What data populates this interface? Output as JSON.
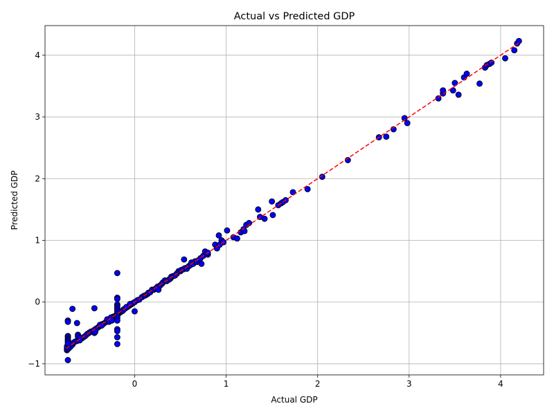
{
  "chart_data": {
    "type": "scatter",
    "title": "Actual vs Predicted GDP",
    "xlabel": "Actual GDP",
    "ylabel": "Predicted GDP",
    "xlim": [
      -0.98,
      4.47
    ],
    "ylim": [
      -1.18,
      4.48
    ],
    "xticks": [
      0,
      1,
      2,
      3,
      4
    ],
    "yticks": [
      -1,
      0,
      1,
      2,
      3,
      4
    ],
    "grid": true,
    "point_color": "#0000ff",
    "point_edge_color": "#000000",
    "line_color": "#ff0000",
    "reference_line": {
      "style": "dashed",
      "x": [
        -0.75,
        4.2
      ],
      "y": [
        -0.75,
        4.2
      ]
    },
    "points": [
      [
        -0.74,
        -0.78
      ],
      [
        -0.74,
        -0.76
      ],
      [
        -0.73,
        -0.74
      ],
      [
        -0.74,
        -0.72
      ],
      [
        -0.72,
        -0.75
      ],
      [
        -0.72,
        -0.7
      ],
      [
        -0.7,
        -0.72
      ],
      [
        -0.7,
        -0.68
      ],
      [
        -0.68,
        -0.69
      ],
      [
        -0.67,
        -0.66
      ],
      [
        -0.65,
        -0.64
      ],
      [
        -0.63,
        -0.63
      ],
      [
        -0.6,
        -0.61
      ],
      [
        -0.58,
        -0.59
      ],
      [
        -0.56,
        -0.57
      ],
      [
        -0.54,
        -0.55
      ],
      [
        -0.52,
        -0.52
      ],
      [
        -0.5,
        -0.5
      ],
      [
        -0.48,
        -0.48
      ],
      [
        -0.46,
        -0.47
      ],
      [
        -0.44,
        -0.45
      ],
      [
        -0.42,
        -0.43
      ],
      [
        -0.4,
        -0.41
      ],
      [
        -0.38,
        -0.39
      ],
      [
        -0.36,
        -0.36
      ],
      [
        -0.34,
        -0.35
      ],
      [
        -0.32,
        -0.33
      ],
      [
        -0.3,
        -0.31
      ],
      [
        -0.28,
        -0.29
      ],
      [
        -0.26,
        -0.27
      ],
      [
        -0.24,
        -0.24
      ],
      [
        -0.22,
        -0.23
      ],
      [
        -0.2,
        -0.21
      ],
      [
        -0.18,
        -0.19
      ],
      [
        -0.16,
        -0.17
      ],
      [
        -0.14,
        -0.15
      ],
      [
        -0.12,
        -0.12
      ],
      [
        -0.1,
        -0.1
      ],
      [
        -0.08,
        -0.08
      ],
      [
        -0.06,
        -0.06
      ],
      [
        -0.04,
        -0.04
      ],
      [
        -0.02,
        -0.02
      ],
      [
        -0.73,
        -0.55
      ],
      [
        -0.73,
        -0.57
      ],
      [
        -0.73,
        -0.6
      ],
      [
        -0.73,
        -0.62
      ],
      [
        -0.73,
        -0.64
      ],
      [
        -0.73,
        -0.67
      ],
      [
        -0.73,
        -0.3
      ],
      [
        -0.73,
        -0.32
      ],
      [
        -0.73,
        -0.94
      ],
      [
        -0.68,
        -0.11
      ],
      [
        -0.63,
        -0.34
      ],
      [
        -0.62,
        -0.53
      ],
      [
        -0.62,
        -0.56
      ],
      [
        -0.6,
        -0.58
      ],
      [
        -0.6,
        -0.62
      ],
      [
        -0.44,
        -0.1
      ],
      [
        -0.44,
        -0.5
      ],
      [
        -0.43,
        -0.48
      ],
      [
        -0.38,
        -0.37
      ],
      [
        -0.36,
        -0.38
      ],
      [
        -0.3,
        -0.28
      ],
      [
        -0.28,
        -0.32
      ],
      [
        -0.26,
        -0.25
      ],
      [
        -0.25,
        -0.3
      ],
      [
        -0.19,
        0.47
      ],
      [
        -0.19,
        0.07
      ],
      [
        -0.19,
        0.05
      ],
      [
        -0.19,
        -0.04
      ],
      [
        -0.19,
        -0.07
      ],
      [
        -0.19,
        -0.1
      ],
      [
        -0.19,
        -0.13
      ],
      [
        -0.19,
        -0.16
      ],
      [
        -0.19,
        -0.2
      ],
      [
        -0.19,
        -0.23
      ],
      [
        -0.19,
        -0.26
      ],
      [
        -0.19,
        -0.3
      ],
      [
        -0.19,
        -0.44
      ],
      [
        -0.19,
        -0.47
      ],
      [
        -0.19,
        -0.57
      ],
      [
        -0.19,
        -0.68
      ],
      [
        -0.13,
        -0.14
      ],
      [
        -0.11,
        -0.11
      ],
      [
        -0.09,
        -0.08
      ],
      [
        -0.05,
        -0.03
      ],
      [
        0.0,
        -0.15
      ],
      [
        0.0,
        0.0
      ],
      [
        0.03,
        0.03
      ],
      [
        0.05,
        0.04
      ],
      [
        0.08,
        0.08
      ],
      [
        0.1,
        0.1
      ],
      [
        0.12,
        0.11
      ],
      [
        0.14,
        0.13
      ],
      [
        0.15,
        0.15
      ],
      [
        0.17,
        0.16
      ],
      [
        0.19,
        0.2
      ],
      [
        0.21,
        0.2
      ],
      [
        0.23,
        0.22
      ],
      [
        0.25,
        0.25
      ],
      [
        0.26,
        0.2
      ],
      [
        0.28,
        0.27
      ],
      [
        0.3,
        0.3
      ],
      [
        0.31,
        0.32
      ],
      [
        0.33,
        0.35
      ],
      [
        0.35,
        0.34
      ],
      [
        0.37,
        0.36
      ],
      [
        0.39,
        0.38
      ],
      [
        0.4,
        0.41
      ],
      [
        0.42,
        0.42
      ],
      [
        0.44,
        0.43
      ],
      [
        0.46,
        0.46
      ],
      [
        0.48,
        0.5
      ],
      [
        0.5,
        0.5
      ],
      [
        0.51,
        0.52
      ],
      [
        0.53,
        0.53
      ],
      [
        0.54,
        0.69
      ],
      [
        0.55,
        0.55
      ],
      [
        0.57,
        0.54
      ],
      [
        0.59,
        0.58
      ],
      [
        0.61,
        0.6
      ],
      [
        0.62,
        0.64
      ],
      [
        0.64,
        0.62
      ],
      [
        0.66,
        0.66
      ],
      [
        0.68,
        0.65
      ],
      [
        0.7,
        0.68
      ],
      [
        0.72,
        0.71
      ],
      [
        0.73,
        0.62
      ],
      [
        0.75,
        0.75
      ],
      [
        0.77,
        0.82
      ],
      [
        0.8,
        0.77
      ],
      [
        0.8,
        0.8
      ],
      [
        0.88,
        0.93
      ],
      [
        0.9,
        0.87
      ],
      [
        0.92,
        1.08
      ],
      [
        0.93,
        0.93
      ],
      [
        0.95,
        1.0
      ],
      [
        0.97,
        0.97
      ],
      [
        1.01,
        1.16
      ],
      [
        1.08,
        1.05
      ],
      [
        1.12,
        1.03
      ],
      [
        1.16,
        1.13
      ],
      [
        1.19,
        1.18
      ],
      [
        1.2,
        1.15
      ],
      [
        1.22,
        1.25
      ],
      [
        1.25,
        1.28
      ],
      [
        1.35,
        1.5
      ],
      [
        1.37,
        1.38
      ],
      [
        1.42,
        1.35
      ],
      [
        1.5,
        1.63
      ],
      [
        1.51,
        1.41
      ],
      [
        1.57,
        1.57
      ],
      [
        1.6,
        1.6
      ],
      [
        1.62,
        1.62
      ],
      [
        1.65,
        1.65
      ],
      [
        1.73,
        1.78
      ],
      [
        1.89,
        1.83
      ],
      [
        2.05,
        2.03
      ],
      [
        2.33,
        2.3
      ],
      [
        2.67,
        2.67
      ],
      [
        2.75,
        2.68
      ],
      [
        2.83,
        2.8
      ],
      [
        2.95,
        2.98
      ],
      [
        2.98,
        2.9
      ],
      [
        3.32,
        3.3
      ],
      [
        3.37,
        3.38
      ],
      [
        3.37,
        3.43
      ],
      [
        3.48,
        3.43
      ],
      [
        3.5,
        3.55
      ],
      [
        3.54,
        3.36
      ],
      [
        3.6,
        3.64
      ],
      [
        3.63,
        3.7
      ],
      [
        3.77,
        3.54
      ],
      [
        3.83,
        3.8
      ],
      [
        3.85,
        3.84
      ],
      [
        3.88,
        3.86
      ],
      [
        3.9,
        3.88
      ],
      [
        4.05,
        3.95
      ],
      [
        4.15,
        4.08
      ],
      [
        4.18,
        4.19
      ],
      [
        4.2,
        4.23
      ]
    ]
  }
}
